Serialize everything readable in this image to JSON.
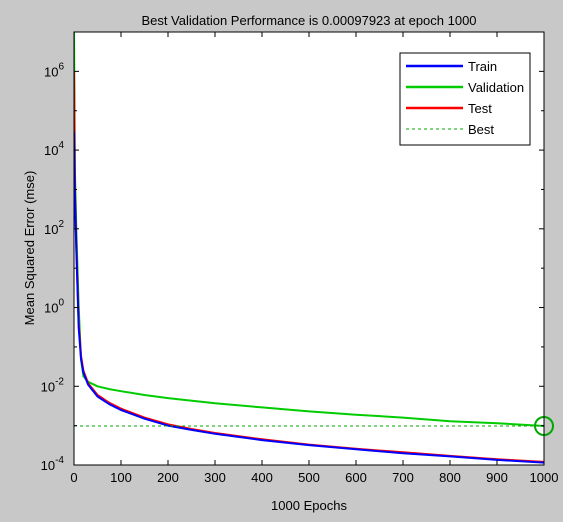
{
  "chart_data": {
    "type": "line",
    "title": "Best Validation Performance is 0.00097923 at epoch 1000",
    "xlabel": "1000 Epochs",
    "ylabel": "Mean Squared Error  (mse)",
    "xscale": "linear",
    "yscale": "log",
    "xlim": [
      0,
      1000
    ],
    "ylim": [
      0.0001,
      10000000
    ],
    "xticks": [
      0,
      100,
      200,
      300,
      400,
      500,
      600,
      700,
      800,
      900,
      1000
    ],
    "yticks": [
      {
        "value": 0.0001,
        "base": "10",
        "exp": "-4"
      },
      {
        "value": 0.01,
        "base": "10",
        "exp": "-2"
      },
      {
        "value": 1,
        "base": "10",
        "exp": "0"
      },
      {
        "value": 100,
        "base": "10",
        "exp": "2"
      },
      {
        "value": 10000,
        "base": "10",
        "exp": "4"
      },
      {
        "value": 1000000,
        "base": "10",
        "exp": "6"
      }
    ],
    "grid": false,
    "legend_position": "top-right",
    "series": [
      {
        "name": "Train",
        "color": "#0000ff",
        "x": [
          0,
          2,
          5,
          10,
          15,
          20,
          30,
          50,
          75,
          100,
          150,
          200,
          250,
          300,
          400,
          500,
          600,
          700,
          800,
          900,
          1000
        ],
        "y": [
          30000,
          800,
          30,
          0.3,
          0.05,
          0.022,
          0.011,
          0.0055,
          0.0035,
          0.0025,
          0.0015,
          0.001,
          0.00078,
          0.00062,
          0.00043,
          0.00032,
          0.00025,
          0.0002,
          0.000165,
          0.000135,
          0.000115
        ]
      },
      {
        "name": "Validation",
        "color": "#00cc00",
        "x": [
          0,
          2,
          5,
          10,
          15,
          20,
          30,
          50,
          75,
          100,
          150,
          200,
          300,
          400,
          500,
          600,
          700,
          800,
          900,
          1000
        ],
        "y": [
          10000000,
          3000,
          100,
          1,
          0.05,
          0.018,
          0.013,
          0.01,
          0.0085,
          0.0075,
          0.006,
          0.005,
          0.0037,
          0.0029,
          0.0023,
          0.0019,
          0.0016,
          0.0013,
          0.00115,
          0.00098
        ]
      },
      {
        "name": "Test",
        "color": "#ff0000",
        "x": [
          0,
          2,
          5,
          10,
          15,
          20,
          30,
          50,
          75,
          100,
          150,
          200,
          250,
          300,
          400,
          500,
          600,
          700,
          800,
          900,
          1000
        ],
        "y": [
          1000000,
          1000,
          40,
          0.4,
          0.06,
          0.025,
          0.012,
          0.006,
          0.0038,
          0.0027,
          0.0016,
          0.00108,
          0.00082,
          0.00065,
          0.00045,
          0.00033,
          0.00026,
          0.00021,
          0.00017,
          0.00014,
          0.00012
        ]
      }
    ],
    "best": {
      "name": "Best",
      "color": "#00aa00",
      "epoch": 1000,
      "value": 0.00097923
    }
  }
}
